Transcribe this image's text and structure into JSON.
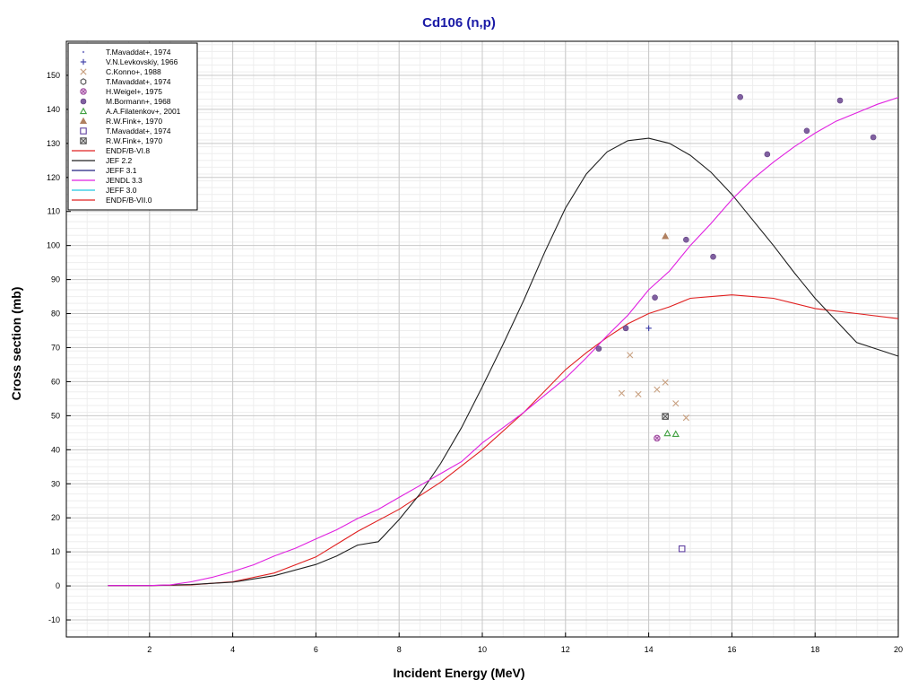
{
  "chart_data": {
    "type": "scatter",
    "title": "Cd106 (n,p)",
    "xlabel": "Incident Energy (MeV)",
    "ylabel": "Cross section (mb)",
    "xlim": [
      0,
      20
    ],
    "ylim": [
      -15,
      160
    ],
    "x_ticks": [
      2,
      4,
      6,
      8,
      10,
      12,
      14,
      16,
      18,
      20
    ],
    "x_minor_step": 0.5,
    "y_ticks": [
      -10,
      0,
      10,
      20,
      30,
      40,
      50,
      60,
      70,
      80,
      90,
      100,
      110,
      120,
      130,
      140,
      150
    ],
    "y_minor_step": 2,
    "grid": true,
    "legend_position": "top-left",
    "colors": {
      "title": "#1a1aa6",
      "background": "#ffffff",
      "grid_major": "#c8c8c8",
      "grid_minor": "#eeeeee"
    },
    "series": [
      {
        "name": "T.Mavaddat+, 1974",
        "kind": "points",
        "marker": "dot",
        "color": "#8888cc",
        "points": []
      },
      {
        "name": "V.N.Levkovskiy, 1966",
        "kind": "points",
        "marker": "plus",
        "color": "#4444aa",
        "points": [
          [
            14.0,
            75.7
          ]
        ]
      },
      {
        "name": "C.Konno+, 1988",
        "kind": "points",
        "marker": "x",
        "color": "#c8a080",
        "points": [
          [
            13.35,
            56.6
          ],
          [
            13.55,
            67.8
          ],
          [
            13.75,
            56.3
          ],
          [
            14.2,
            57.7
          ],
          [
            14.4,
            59.8
          ],
          [
            14.65,
            53.6
          ],
          [
            14.9,
            49.4
          ]
        ]
      },
      {
        "name": "T.Mavaddat+, 1974",
        "kind": "points",
        "marker": "hexagon",
        "color": "#555555",
        "points": []
      },
      {
        "name": "H.Weigel+, 1975",
        "kind": "points",
        "marker": "circle-x",
        "color": "#a050a0",
        "points": [
          [
            14.2,
            43.4
          ]
        ]
      },
      {
        "name": "M.Bormann+, 1968",
        "kind": "points",
        "marker": "filled-circle",
        "color": "#8060a0",
        "points": [
          [
            12.8,
            69.7
          ],
          [
            13.45,
            75.7
          ],
          [
            14.15,
            84.7
          ],
          [
            14.9,
            101.7
          ],
          [
            15.55,
            96.7
          ],
          [
            16.2,
            143.6
          ],
          [
            16.85,
            126.8
          ],
          [
            17.8,
            133.7
          ],
          [
            18.6,
            142.6
          ],
          [
            19.4,
            131.8
          ]
        ]
      },
      {
        "name": "A.A.Filatenkov+, 2001",
        "kind": "points",
        "marker": "triangle-open",
        "color": "#40a040",
        "points": [
          [
            14.45,
            44.8
          ],
          [
            14.65,
            44.6
          ]
        ]
      },
      {
        "name": "R.W.Fink+, 1970",
        "kind": "points",
        "marker": "triangle-filled",
        "color": "#b08060",
        "points": [
          [
            14.4,
            102.7
          ]
        ]
      },
      {
        "name": "T.Mavaddat+, 1974",
        "kind": "points",
        "marker": "square-open",
        "color": "#6040a0",
        "points": [
          [
            14.8,
            10.9
          ]
        ]
      },
      {
        "name": "R.W.Fink+, 1970",
        "kind": "points",
        "marker": "square-x",
        "color": "#505050",
        "points": [
          [
            14.4,
            49.8
          ]
        ]
      },
      {
        "name": "ENDF/B-VI.8",
        "kind": "line",
        "color": "#e02020",
        "points": [
          [
            1,
            0.1
          ],
          [
            2,
            0.1
          ],
          [
            3,
            0.3
          ],
          [
            4,
            1.2
          ],
          [
            5,
            3.8
          ],
          [
            6,
            8.5
          ],
          [
            7,
            16
          ],
          [
            8,
            22.5
          ],
          [
            9,
            30.5
          ],
          [
            10,
            40
          ],
          [
            11,
            51
          ],
          [
            12,
            63.5
          ],
          [
            12.5,
            68.5
          ],
          [
            13,
            73
          ],
          [
            13.5,
            77
          ],
          [
            14,
            80
          ],
          [
            14.5,
            82
          ],
          [
            15,
            84.5
          ],
          [
            15.5,
            85
          ],
          [
            16,
            85.5
          ],
          [
            16.5,
            85
          ],
          [
            17,
            84.5
          ],
          [
            17.5,
            83
          ],
          [
            18,
            81.5
          ],
          [
            19,
            80
          ],
          [
            20,
            78.5
          ]
        ]
      },
      {
        "name": "JEF 2.2",
        "kind": "line",
        "color": "#202020",
        "points": [
          [
            1,
            0.1
          ],
          [
            2,
            0.1
          ],
          [
            3,
            0.4
          ],
          [
            4,
            1.1
          ],
          [
            5,
            3
          ],
          [
            6,
            6.3
          ],
          [
            6.5,
            8.8
          ],
          [
            7,
            12
          ],
          [
            7.5,
            13
          ],
          [
            8,
            19.5
          ],
          [
            8.5,
            27
          ],
          [
            9,
            36
          ],
          [
            9.5,
            46.5
          ],
          [
            10,
            58.5
          ],
          [
            10.5,
            71
          ],
          [
            11,
            84
          ],
          [
            11.5,
            98
          ],
          [
            12,
            111
          ],
          [
            12.5,
            121
          ],
          [
            13,
            127.5
          ],
          [
            13.5,
            130.8
          ],
          [
            14,
            131.5
          ],
          [
            14.5,
            130
          ],
          [
            15,
            126.5
          ],
          [
            15.5,
            121.5
          ],
          [
            16,
            115
          ],
          [
            16.5,
            107.5
          ],
          [
            17,
            100
          ],
          [
            17.5,
            92
          ],
          [
            18,
            84.5
          ],
          [
            18.5,
            78
          ],
          [
            19,
            71.5
          ],
          [
            19.5,
            69.5
          ],
          [
            20,
            67.5
          ]
        ]
      },
      {
        "name": "JEFF 3.1",
        "kind": "line",
        "color": "#202080",
        "points": []
      },
      {
        "name": "JENDL 3.3",
        "kind": "line",
        "color": "#e020e0",
        "points": [
          [
            1,
            0.1
          ],
          [
            2,
            0.1
          ],
          [
            2.5,
            0.3
          ],
          [
            3,
            1.2
          ],
          [
            3.5,
            2.5
          ],
          [
            4,
            4.2
          ],
          [
            4.5,
            6.2
          ],
          [
            5,
            8.8
          ],
          [
            5.5,
            11
          ],
          [
            6,
            13.8
          ],
          [
            6.5,
            16.5
          ],
          [
            7,
            19.8
          ],
          [
            7.5,
            22.5
          ],
          [
            8,
            26
          ],
          [
            8.5,
            29.5
          ],
          [
            9,
            33
          ],
          [
            9.5,
            36.5
          ],
          [
            10,
            42
          ],
          [
            10.5,
            46.5
          ],
          [
            11,
            51
          ],
          [
            11.5,
            56
          ],
          [
            12,
            61
          ],
          [
            12.5,
            67
          ],
          [
            13,
            73.5
          ],
          [
            13.5,
            79.5
          ],
          [
            14,
            87
          ],
          [
            14.5,
            92.5
          ],
          [
            15,
            100
          ],
          [
            15.5,
            106.5
          ],
          [
            16,
            113.5
          ],
          [
            16.5,
            119.5
          ],
          [
            17,
            124.5
          ],
          [
            17.5,
            129
          ],
          [
            18,
            133
          ],
          [
            18.5,
            136.5
          ],
          [
            19,
            139
          ],
          [
            19.5,
            141.5
          ],
          [
            20,
            143.5
          ]
        ]
      },
      {
        "name": "JEFF 3.0",
        "kind": "line",
        "color": "#20c8e0",
        "points": []
      },
      {
        "name": "ENDF/B-VII.0",
        "kind": "line",
        "color": "#e02020",
        "points": []
      }
    ]
  }
}
